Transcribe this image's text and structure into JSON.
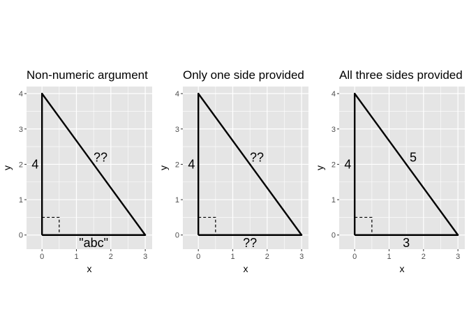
{
  "chart_data": [
    {
      "type": "line",
      "title": "Non-numeric argument",
      "xlabel": "x",
      "ylabel": "y",
      "xlim": [
        -0.45,
        3.2
      ],
      "ylim": [
        -0.4,
        4.2
      ],
      "x_ticks": [
        "0",
        "1",
        "2",
        "3"
      ],
      "y_ticks": [
        "0",
        "1",
        "2",
        "3",
        "4"
      ],
      "grid": true,
      "triangle": {
        "x": [
          0,
          3,
          0,
          0
        ],
        "y": [
          0,
          0,
          4,
          0
        ]
      },
      "right_angle_marker": {
        "x": [
          0,
          0.5,
          0.5
        ],
        "y": [
          0.5,
          0.5,
          0
        ]
      },
      "side_labels": [
        {
          "text": "4",
          "x": -0.2,
          "y": 2
        },
        {
          "text": "\"abc\"",
          "x": 1.5,
          "y": -0.22
        },
        {
          "text": "??",
          "x": 1.7,
          "y": 2.2
        }
      ]
    },
    {
      "type": "line",
      "title": "Only one side provided",
      "xlabel": "x",
      "ylabel": "y",
      "xlim": [
        -0.45,
        3.2
      ],
      "ylim": [
        -0.4,
        4.2
      ],
      "x_ticks": [
        "0",
        "1",
        "2",
        "3"
      ],
      "y_ticks": [
        "0",
        "1",
        "2",
        "3",
        "4"
      ],
      "grid": true,
      "triangle": {
        "x": [
          0,
          3,
          0,
          0
        ],
        "y": [
          0,
          0,
          4,
          0
        ]
      },
      "right_angle_marker": {
        "x": [
          0,
          0.5,
          0.5
        ],
        "y": [
          0.5,
          0.5,
          0
        ]
      },
      "side_labels": [
        {
          "text": "4",
          "x": -0.2,
          "y": 2
        },
        {
          "text": "??",
          "x": 1.5,
          "y": -0.22
        },
        {
          "text": "??",
          "x": 1.7,
          "y": 2.2
        }
      ]
    },
    {
      "type": "line",
      "title": "All three sides provided",
      "xlabel": "x",
      "ylabel": "y",
      "xlim": [
        -0.45,
        3.2
      ],
      "ylim": [
        -0.4,
        4.2
      ],
      "x_ticks": [
        "0",
        "1",
        "2",
        "3"
      ],
      "y_ticks": [
        "0",
        "1",
        "2",
        "3",
        "4"
      ],
      "grid": true,
      "triangle": {
        "x": [
          0,
          3,
          0,
          0
        ],
        "y": [
          0,
          0,
          4,
          0
        ]
      },
      "right_angle_marker": {
        "x": [
          0,
          0.5,
          0.5
        ],
        "y": [
          0.5,
          0.5,
          0
        ]
      },
      "side_labels": [
        {
          "text": "4",
          "x": -0.2,
          "y": 2
        },
        {
          "text": "3",
          "x": 1.5,
          "y": -0.22
        },
        {
          "text": "5",
          "x": 1.7,
          "y": 2.2
        }
      ]
    }
  ],
  "colors": {
    "panel_background": "#e5e5e5",
    "grid": "#ffffff",
    "triangle": "#000000",
    "tick": "#333333"
  }
}
